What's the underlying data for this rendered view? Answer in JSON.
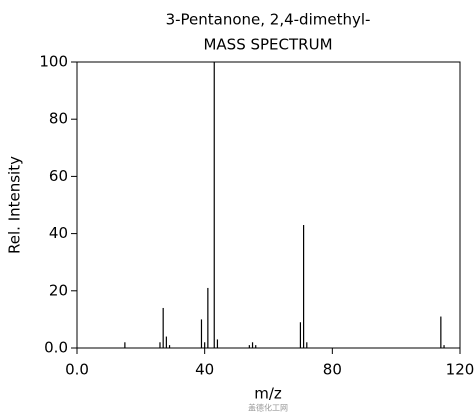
{
  "chart_data": {
    "type": "stem",
    "title": "3-Pentanone, 2,4-dimethyl-",
    "subtitle": "MASS SPECTRUM",
    "xlabel": "m/z",
    "ylabel": "Rel. Intensity",
    "watermark": "盖德化工网",
    "x": [
      15,
      26,
      27,
      28,
      29,
      39,
      40,
      41,
      43,
      44,
      54,
      55,
      56,
      70,
      71,
      72,
      114,
      115
    ],
    "values": [
      2,
      2,
      14,
      4,
      1,
      10,
      2,
      21,
      100,
      3,
      1,
      2,
      1,
      9,
      43,
      2,
      11,
      1
    ],
    "color": "#000000",
    "xlim": [
      0,
      120
    ],
    "xticks": [
      {
        "value": 0,
        "label": "0.0"
      },
      40,
      80,
      120
    ],
    "ylim": [
      0,
      100
    ],
    "yticks": [
      {
        "value": 0,
        "label": "0.0"
      },
      20,
      40,
      60,
      80,
      100
    ]
  }
}
